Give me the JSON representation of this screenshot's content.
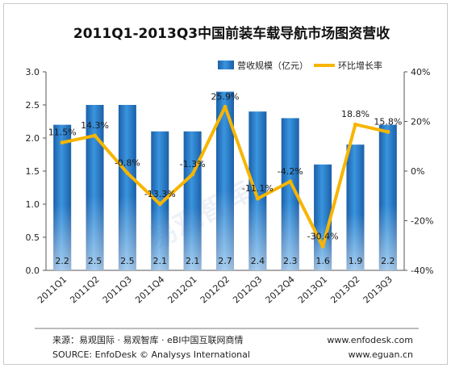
{
  "chart_data": {
    "type": "bar",
    "title": "2011Q1-2013Q3中国前装车载导航市场图资营收",
    "categories": [
      "2011Q1",
      "2011Q2",
      "2011Q3",
      "2011Q4",
      "2012Q1",
      "2012Q2",
      "2012Q3",
      "2012Q4",
      "2013Q1",
      "2013Q2",
      "2013Q3"
    ],
    "series": [
      {
        "name": "营收规模（亿元）",
        "type": "bar",
        "axis": "left",
        "values": [
          2.2,
          2.5,
          2.5,
          2.1,
          2.1,
          2.7,
          2.4,
          2.3,
          1.6,
          1.9,
          2.2
        ],
        "labels": [
          "2.2",
          "2.5",
          "2.5",
          "2.1",
          "2.1",
          "2.7",
          "2.4",
          "2.3",
          "1.6",
          "1.9",
          "2.2"
        ],
        "color": "#2a7cc7"
      },
      {
        "name": "环比增长率",
        "type": "line",
        "axis": "right",
        "values": [
          11.5,
          14.3,
          -0.8,
          -13.3,
          -1.3,
          25.9,
          -11.1,
          -4.2,
          -30.4,
          18.8,
          15.8
        ],
        "labels": [
          "11.5%",
          "14.3%",
          "-0.8%",
          "-13.3%",
          "-1.3%",
          "25.9%",
          "-11.1%",
          "-4.2%",
          "-30.4%",
          "18.8%",
          "15.8%"
        ],
        "color": "#f7b500"
      }
    ],
    "ylim": [
      0,
      3.0
    ],
    "y_ticks": [
      "0.0",
      "0.5",
      "1.0",
      "1.5",
      "2.0",
      "2.5",
      "3.0"
    ],
    "y2lim": [
      -40,
      40
    ],
    "y2_ticks": [
      "-40%",
      "-20%",
      "0%",
      "20%",
      "40%"
    ],
    "grid": false,
    "legend_position": "top-right"
  },
  "watermark": "易观智库",
  "footer": {
    "source_cn": "来源：易观国际 · 易观智库 · eBI中国互联网商情",
    "source_en": "SOURCE: EnfoDesk © Analysys International",
    "url1": "www.enfodesk.com",
    "url2": "www.eguan.cn"
  }
}
